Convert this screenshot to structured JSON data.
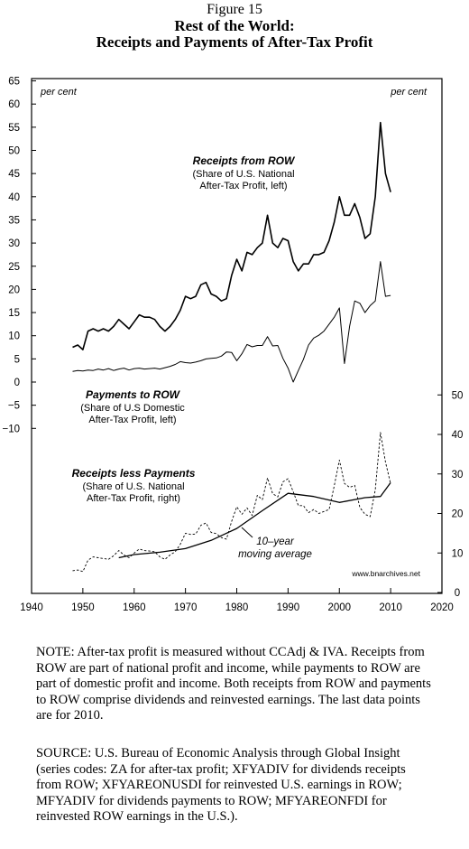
{
  "header": {
    "figure": "Figure 15",
    "title_line1": "Rest of the World:",
    "title_line2": "Receipts and Payments of After-Tax Profit"
  },
  "chart_data": {
    "type": "line",
    "units_left": "per cent",
    "units_right": "per cent",
    "x_ticks": [
      1940,
      1950,
      1960,
      1970,
      1980,
      1990,
      2000,
      2010,
      2020
    ],
    "x_range": [
      1940,
      2020
    ],
    "left_ticks": [
      "65",
      "60",
      "55",
      "50",
      "45",
      "40",
      "35",
      "30",
      "25",
      "20",
      "15",
      "10",
      "5",
      "0",
      "−5",
      "−10"
    ],
    "left_range": [
      -10,
      65
    ],
    "right_ticks": [
      "50",
      "40",
      "30",
      "20",
      "10",
      "0"
    ],
    "right_range": [
      0,
      50
    ],
    "source_tag": "www.bnarchives.net",
    "series": [
      {
        "name": "Receipts from ROW",
        "desc1": "(Share of U.S. National",
        "desc2": "After-Tax Profit, left)",
        "axis": "left",
        "style": "thick",
        "x": [
          1948,
          1949,
          1950,
          1951,
          1952,
          1953,
          1954,
          1955,
          1956,
          1957,
          1958,
          1959,
          1960,
          1961,
          1962,
          1963,
          1964,
          1965,
          1966,
          1967,
          1968,
          1969,
          1970,
          1971,
          1972,
          1973,
          1974,
          1975,
          1976,
          1977,
          1978,
          1979,
          1980,
          1981,
          1982,
          1983,
          1984,
          1985,
          1986,
          1987,
          1988,
          1989,
          1990,
          1991,
          1992,
          1993,
          1994,
          1995,
          1996,
          1997,
          1998,
          1999,
          2000,
          2001,
          2002,
          2003,
          2004,
          2005,
          2006,
          2007,
          2008,
          2009,
          2010
        ],
        "y": [
          7.5,
          8,
          7,
          11,
          11.5,
          11,
          11.5,
          11,
          12,
          13.5,
          12.5,
          11.5,
          13,
          14.5,
          14,
          14,
          13.5,
          12,
          11,
          12,
          13.5,
          15.5,
          18.5,
          18,
          18.5,
          21,
          21.5,
          19,
          18.5,
          17.5,
          18,
          23,
          26.5,
          24,
          28,
          27.5,
          29,
          30,
          36,
          30,
          29,
          31,
          30.5,
          26,
          24,
          25.5,
          25.5,
          27.5,
          27.5,
          28,
          30.5,
          34.5,
          40,
          36,
          36,
          38.5,
          35.5,
          31,
          32,
          40,
          56,
          45,
          41
        ]
      },
      {
        "name": "Payments to ROW",
        "desc1": "(Share of U.S Domestic",
        "desc2": "After-Tax Profit, left)",
        "axis": "left",
        "style": "thin",
        "x": [
          1948,
          1949,
          1950,
          1951,
          1952,
          1953,
          1954,
          1955,
          1956,
          1957,
          1958,
          1959,
          1960,
          1961,
          1962,
          1963,
          1964,
          1965,
          1966,
          1967,
          1968,
          1969,
          1970,
          1971,
          1972,
          1973,
          1974,
          1975,
          1976,
          1977,
          1978,
          1979,
          1980,
          1981,
          1982,
          1983,
          1984,
          1985,
          1986,
          1987,
          1988,
          1989,
          1990,
          1991,
          1992,
          1993,
          1994,
          1995,
          1996,
          1997,
          1998,
          1999,
          2000,
          2001,
          2002,
          2003,
          2004,
          2005,
          2006,
          2007,
          2008,
          2009,
          2010
        ],
        "y": [
          2.3,
          2.5,
          2.4,
          2.6,
          2.5,
          2.8,
          2.6,
          2.9,
          2.5,
          2.8,
          3,
          2.6,
          2.9,
          3,
          2.8,
          2.9,
          3,
          2.8,
          3.1,
          3.4,
          3.8,
          4.4,
          4.2,
          4.1,
          4.3,
          4.6,
          5,
          5.1,
          5.2,
          5.6,
          6.5,
          6.4,
          4.6,
          6.1,
          8.1,
          7.6,
          7.9,
          7.9,
          9.8,
          7.8,
          7.9,
          5.1,
          3,
          0,
          2.5,
          4.9,
          8,
          9.5,
          10.1,
          11,
          12.5,
          14,
          16,
          4,
          12,
          17.5,
          17,
          15,
          16.5,
          17.5,
          26,
          18.5,
          18.7
        ]
      },
      {
        "name": "Receipts less Payments",
        "desc1": "(Share of U.S. National",
        "desc2": "After-Tax Profit, right)",
        "axis": "right",
        "style": "dashed",
        "x": [
          1948,
          1949,
          1950,
          1951,
          1952,
          1953,
          1954,
          1955,
          1956,
          1957,
          1958,
          1959,
          1960,
          1961,
          1962,
          1963,
          1964,
          1965,
          1966,
          1967,
          1968,
          1969,
          1970,
          1971,
          1972,
          1973,
          1974,
          1975,
          1976,
          1977,
          1978,
          1979,
          1980,
          1981,
          1982,
          1983,
          1984,
          1985,
          1986,
          1987,
          1988,
          1989,
          1990,
          1991,
          1992,
          1993,
          1994,
          1995,
          1996,
          1997,
          1998,
          1999,
          2000,
          2001,
          2002,
          2003,
          2004,
          2005,
          2006,
          2007,
          2008,
          2009,
          2010
        ],
        "y": [
          5.5,
          5.7,
          5.3,
          8.2,
          9,
          8.8,
          8.6,
          8.4,
          9.3,
          10.6,
          9.5,
          8.8,
          10,
          11,
          10.6,
          10.5,
          10.3,
          9,
          8.4,
          9.5,
          10.3,
          12.2,
          15,
          14.7,
          14.8,
          17,
          17.6,
          15.2,
          14.9,
          13.9,
          13.5,
          18,
          21.7,
          19.8,
          21.4,
          19.5,
          24.6,
          23.5,
          29,
          25,
          24.2,
          28,
          28.8,
          25.5,
          22,
          22,
          20.2,
          21,
          20,
          20.5,
          21,
          27,
          33.5,
          27.6,
          26.6,
          27.1,
          21.5,
          19.8,
          19.2,
          26,
          40.5,
          33,
          27.5
        ]
      },
      {
        "name": "10–year moving average",
        "axis": "right",
        "style": "medium",
        "x": [
          1957,
          1960,
          1965,
          1970,
          1975,
          1980,
          1985,
          1990,
          1995,
          2000,
          2005,
          2008,
          2010
        ],
        "y": [
          8.8,
          9.6,
          10.2,
          11.1,
          13.2,
          16.2,
          20.7,
          25.1,
          24.3,
          22.8,
          24,
          24.3,
          27.8
        ]
      }
    ],
    "ma_label_line1": "10–year",
    "ma_label_line2": "moving average"
  },
  "notes": {
    "note": "NOTE: After-tax profit is measured without CCAdj & IVA. Receipts from ROW are part of national profit and income, while payments to ROW are part of domestic profit and income. Both receipts from ROW and payments to ROW comprise dividends and reinvested earnings. The last data points are for 2010.",
    "source": "SOURCE: U.S. Bureau of Economic Analysis through Global Insight (series codes: ZA for after-tax profit; XFYADIV for dividends receipts from ROW; XFYAREONUSDI for reinvested U.S. earnings in ROW; MFYADIV for dividends payments to ROW; MFYAREONFDI for reinvested ROW earnings in the U.S.)."
  }
}
